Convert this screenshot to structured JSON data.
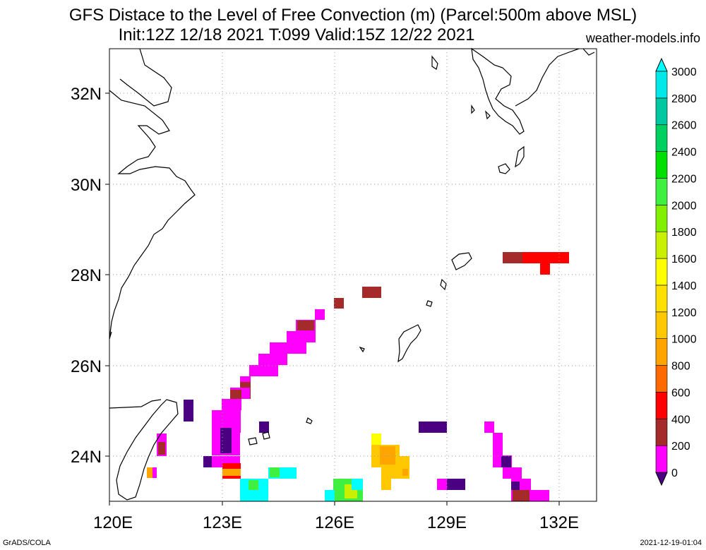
{
  "title_line1": "GFS Distace to the Level of Free Convection (m) (Parcel:500m above MSL)",
  "title_line2": "Init:12Z 12/18 2021 T:099 Valid:15Z 12/22 2021",
  "site": "weather-models.info",
  "footer_left": "GrADS/COLA",
  "footer_right": "2021-12-19-01:04",
  "lon_labels": [
    "120E",
    "123E",
    "126E",
    "129E",
    "132E"
  ],
  "lat_labels": [
    "24N",
    "26N",
    "28N",
    "30N",
    "32N"
  ],
  "colorbar": {
    "labels": [
      "0",
      "200",
      "400",
      "600",
      "800",
      "1000",
      "1200",
      "1400",
      "1600",
      "1800",
      "2000",
      "2200",
      "2400",
      "2600",
      "2800",
      "3000"
    ],
    "colors": [
      "#4b0082",
      "#ff00ff",
      "#a52a2a",
      "#ff0000",
      "#ff6a00",
      "#ffa500",
      "#ffc800",
      "#ffe000",
      "#ffff00",
      "#c8f000",
      "#80f000",
      "#40f040",
      "#00e000",
      "#00d060",
      "#00c8a0",
      "#00e8e8",
      "#00ffff"
    ]
  }
}
